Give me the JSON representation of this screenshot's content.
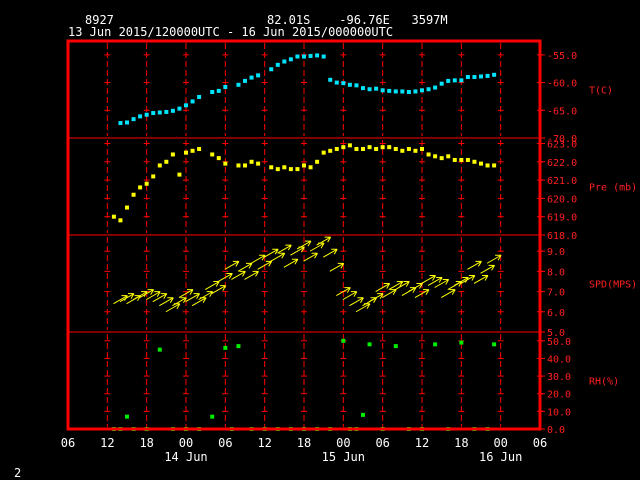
{
  "header": {
    "station": "8927",
    "location": "82.01S    -96.76E   3597M",
    "period": "13 Jun 2015/120000UTC - 16 Jun 2015/000000UTC"
  },
  "footer": {
    "page": "2"
  },
  "colors": {
    "frame": "#ff0000",
    "temp": "#00e5ff",
    "pressure": "#ffff00",
    "wind": "#ffff00",
    "rh": "#00ee00",
    "text": "#ffffff"
  },
  "chart_data": [
    {
      "type": "scatter",
      "panel": "temperature",
      "ylabel": "T(C)",
      "ylim": [
        -70,
        -52.5
      ],
      "yticks": [
        "-55.0",
        "-60.0",
        "-65.0",
        "-70.0"
      ],
      "ytick_values": [
        -55,
        -60,
        -65,
        -70
      ],
      "x_unit": "hours since 13 Jun 2015 00 UTC",
      "x": [
        14,
        15,
        16,
        17,
        18,
        19,
        20,
        21,
        22,
        23,
        24,
        25,
        26,
        28,
        29,
        30,
        32,
        33,
        34,
        35,
        37,
        38,
        39,
        40,
        41,
        42,
        43,
        44,
        45,
        46,
        47,
        48,
        49,
        50,
        51,
        52,
        53,
        54,
        55,
        56,
        57,
        58,
        59,
        60,
        61,
        62,
        63,
        64,
        65,
        66,
        67,
        68,
        69,
        70,
        71
      ],
      "y": [
        -67.3,
        -67.2,
        -66.6,
        -66.1,
        -65.8,
        -65.5,
        -65.4,
        -65.3,
        -65.1,
        -64.7,
        -64.1,
        -63.4,
        -62.6,
        -61.7,
        -61.5,
        -60.8,
        -60.4,
        -59.7,
        -59.1,
        -58.7,
        -57.6,
        -56.8,
        -56.2,
        -55.8,
        -55.3,
        -55.3,
        -55.2,
        -55.1,
        -55.3,
        -59.5,
        -60.0,
        -60.1,
        -60.4,
        -60.5,
        -61.0,
        -61.2,
        -61.1,
        -61.4,
        -61.5,
        -61.6,
        -61.6,
        -61.7,
        -61.6,
        -61.4,
        -61.2,
        -60.9,
        -60.2,
        -59.7,
        -59.6,
        -59.6,
        -59.0,
        -59.0,
        -58.9,
        -58.8,
        -58.6
      ]
    },
    {
      "type": "scatter",
      "panel": "pressure",
      "ylabel": "Pre (mb)",
      "ylim": [
        618,
        623.3
      ],
      "yticks": [
        "623.0",
        "622.0",
        "621.0",
        "620.0",
        "619.0",
        "618.0"
      ],
      "ytick_values": [
        623,
        622,
        621,
        620,
        619,
        618
      ],
      "x": [
        13,
        14,
        15,
        16,
        17,
        18,
        19,
        20,
        21,
        22,
        23,
        24,
        25,
        26,
        28,
        29,
        30,
        32,
        33,
        34,
        35,
        37,
        38,
        39,
        40,
        41,
        42,
        43,
        44,
        45,
        46,
        47,
        48,
        49,
        50,
        51,
        52,
        53,
        54,
        55,
        56,
        57,
        58,
        59,
        60,
        61,
        62,
        63,
        64,
        65,
        66,
        67,
        68,
        69,
        70,
        71
      ],
      "y": [
        619.0,
        618.8,
        619.5,
        620.2,
        620.6,
        620.8,
        621.2,
        621.8,
        622.0,
        622.4,
        621.3,
        622.5,
        622.6,
        622.7,
        622.4,
        622.2,
        621.9,
        621.8,
        621.8,
        622.0,
        621.9,
        621.7,
        621.6,
        621.7,
        621.6,
        621.6,
        621.8,
        621.7,
        622.0,
        622.5,
        622.6,
        622.7,
        622.8,
        622.9,
        622.7,
        622.7,
        622.8,
        622.7,
        622.8,
        622.8,
        622.7,
        622.6,
        622.7,
        622.6,
        622.7,
        622.4,
        622.3,
        622.2,
        622.3,
        622.1,
        622.1,
        622.1,
        622.0,
        621.9,
        621.8,
        621.8
      ]
    },
    {
      "type": "scatter",
      "panel": "wind",
      "ylabel": "SPD(MPS)",
      "ylim": [
        5,
        9.8
      ],
      "yticks": [
        "9.0",
        "8.0",
        "7.0",
        "6.0",
        "5.0"
      ],
      "ytick_values": [
        9,
        8,
        7,
        6,
        5
      ],
      "x": [
        14,
        15,
        16,
        17,
        18,
        19,
        20,
        21,
        22,
        23,
        24,
        25,
        26,
        27,
        28,
        29,
        30,
        31,
        32,
        33,
        34,
        35,
        36,
        37,
        38,
        39,
        40,
        41,
        42,
        43,
        44,
        45,
        46,
        47,
        48,
        49,
        50,
        51,
        52,
        53,
        54,
        55,
        56,
        57,
        58,
        59,
        60,
        61,
        62,
        63,
        64,
        65,
        66,
        67,
        68,
        69,
        70,
        71
      ],
      "y": [
        6.6,
        6.7,
        6.6,
        6.8,
        6.9,
        6.8,
        6.7,
        6.5,
        6.2,
        6.5,
        6.9,
        6.7,
        6.5,
        6.8,
        7.3,
        7.1,
        7.7,
        8.3,
        7.8,
        8.2,
        7.8,
        8.6,
        8.3,
        8.9,
        8.7,
        9.1,
        8.4,
        9.0,
        9.3,
        8.7,
        9.2,
        9.5,
        8.9,
        8.2,
        7.0,
        6.8,
        6.5,
        6.2,
        6.5,
        6.7,
        7.2,
        6.9,
        7.3,
        7.3,
        7.0,
        7.2,
        6.9,
        7.6,
        7.5,
        7.4,
        6.9,
        7.3,
        7.5,
        7.6,
        8.3,
        7.6,
        8.1,
        8.6
      ]
    },
    {
      "type": "scatter",
      "panel": "rh",
      "ylabel": "RH(%)",
      "ylim": [
        0,
        55
      ],
      "yticks": [
        "50.0",
        "40.0",
        "30.0",
        "20.0",
        "10.0",
        "0.0"
      ],
      "ytick_values": [
        50,
        40,
        30,
        20,
        10,
        0
      ],
      "x": [
        13,
        14,
        15,
        16,
        18,
        20,
        22,
        24,
        26,
        28,
        30,
        31,
        32,
        34,
        36,
        38,
        40,
        42,
        44,
        46,
        48,
        49,
        50,
        51,
        52,
        54,
        56,
        58,
        60,
        62,
        64,
        66,
        68,
        70,
        71
      ],
      "y": [
        0,
        0,
        7,
        0,
        0,
        45,
        0,
        0,
        0,
        7,
        46,
        0,
        47,
        0,
        0,
        0,
        0,
        0,
        0,
        0,
        50,
        0,
        0,
        8,
        48,
        0,
        47,
        0,
        0,
        48,
        0,
        49,
        0,
        0,
        48
      ]
    }
  ],
  "xaxis": {
    "ticks": [
      "06",
      "12",
      "18",
      "00",
      "06",
      "12",
      "18",
      "00",
      "06",
      "12",
      "18",
      "00",
      "06"
    ],
    "days": [
      "14 Jun",
      "15 Jun",
      "16 Jun"
    ]
  }
}
